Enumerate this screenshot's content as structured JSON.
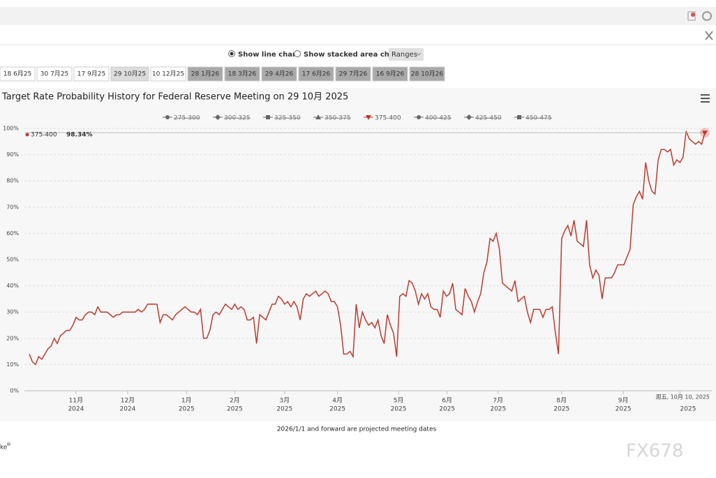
{
  "toolbar": {
    "line_option": "Show line chart",
    "area_option": "Show stacked area chart",
    "ranges": "Ranges"
  },
  "tabs": {
    "items": [
      "18 6月25",
      "30 7月25",
      "17 9月25",
      "29 10月25",
      "10 12月25",
      "28 1月26",
      "18 3月26",
      "29 4月26",
      "17 6月26",
      "29 7月26",
      "16 9月26",
      "28 10月26"
    ],
    "active_index": 3,
    "projected_from_index": 5
  },
  "chart_data": {
    "type": "line",
    "title": "Target Rate Probability History for Federal Reserve Meeting on 29 10月 2025",
    "hidden_series": [
      {
        "name": "275-300",
        "marker": "circle"
      },
      {
        "name": "300-325",
        "marker": "diamond"
      },
      {
        "name": "325-350",
        "marker": "square"
      },
      {
        "name": "350-375",
        "marker": "triangle"
      },
      {
        "name": "400-425",
        "marker": "circle"
      },
      {
        "name": "425-450",
        "marker": "diamond"
      },
      {
        "name": "450-475",
        "marker": "square"
      }
    ],
    "series": [
      {
        "name": "375-400",
        "color": "#c0392b",
        "marker": "triangle-down",
        "values": [
          14,
          11,
          10,
          13,
          12,
          14,
          16,
          17,
          20,
          18,
          21,
          22,
          23,
          23,
          25,
          28,
          27,
          27,
          29,
          30,
          30,
          29,
          32,
          30,
          30,
          30,
          29,
          28,
          29,
          29,
          30,
          30,
          30,
          30,
          30,
          31,
          30,
          31,
          33,
          33,
          33,
          33,
          26,
          29,
          29,
          28,
          27,
          29,
          30,
          31,
          32,
          31,
          30,
          30,
          29,
          31,
          20,
          20,
          23,
          29,
          30,
          29,
          31,
          33,
          32,
          31,
          33,
          31,
          32,
          31,
          27,
          27,
          28,
          18,
          29,
          28,
          27,
          30,
          33,
          33,
          36,
          35,
          33,
          34,
          32,
          34,
          32,
          27,
          35,
          37,
          36,
          37,
          38,
          36,
          37,
          38,
          37,
          34,
          34,
          32,
          25,
          14,
          14,
          15,
          13,
          33,
          24,
          30,
          27,
          25,
          26,
          24,
          27,
          21,
          18,
          29,
          25,
          22,
          13,
          36,
          37,
          36,
          42,
          41,
          38,
          33,
          37,
          35,
          37,
          32,
          31,
          31,
          28,
          38,
          36,
          37,
          41,
          31,
          30,
          29,
          39,
          36,
          34,
          30,
          34,
          37,
          45,
          49,
          58,
          57,
          60,
          54,
          41,
          40,
          39,
          38,
          42,
          34,
          35,
          36,
          30,
          26,
          31,
          31,
          31,
          28,
          31,
          31,
          32,
          22,
          14,
          58,
          61,
          63,
          59,
          65,
          57,
          56,
          55,
          65,
          48,
          43,
          46,
          44,
          35,
          43,
          43,
          43,
          45,
          48,
          48,
          48,
          51,
          54,
          71,
          74,
          76,
          73,
          87,
          80,
          76,
          75,
          88,
          92,
          92,
          91,
          92,
          86,
          88,
          87,
          89,
          99,
          96,
          95,
          94,
          95,
          94,
          98.34
        ]
      }
    ],
    "legend_order": [
      "275-300",
      "300-325",
      "325-350",
      "350-375",
      "375-400",
      "400-425",
      "425-450",
      "450-475"
    ],
    "tooltip": "98.34%",
    "xlim": [
      0,
      217
    ],
    "xticks": [
      {
        "value": 15,
        "label": "11月"
      },
      {
        "value": 31.6,
        "label": "12月"
      },
      {
        "value": 50.5,
        "label": "1月"
      },
      {
        "value": 66,
        "label": "2月"
      },
      {
        "value": 82,
        "label": "3月"
      },
      {
        "value": 99,
        "label": "4月"
      },
      {
        "value": 118.6,
        "label": "5月"
      },
      {
        "value": 134.2,
        "label": "6月"
      },
      {
        "value": 150.6,
        "label": "7月"
      },
      {
        "value": 171,
        "label": "8月"
      },
      {
        "value": 190.8,
        "label": "9月"
      },
      {
        "value": 209,
        "label": "周五, 10月 10, 2025"
      }
    ],
    "xtick_years": [
      "2024",
      "2024",
      "2025",
      "2025",
      "2025",
      "2025",
      "2025",
      "2025",
      "2025",
      "2025",
      "2025",
      "2025"
    ],
    "ylim": [
      0,
      100
    ],
    "yticks": [
      {
        "value": 0,
        "label": "0%"
      },
      {
        "value": 10,
        "label": "10%"
      },
      {
        "value": 20,
        "label": "20%"
      },
      {
        "value": 30,
        "label": "30%"
      },
      {
        "value": 40,
        "label": "40%"
      },
      {
        "value": 50,
        "label": "50%"
      },
      {
        "value": 60,
        "label": "60%"
      },
      {
        "value": 70,
        "label": "70%"
      },
      {
        "value": 80,
        "label": "80%"
      },
      {
        "value": 90,
        "label": "90%"
      },
      {
        "value": 100,
        "label": "100%"
      }
    ],
    "grid": true
  },
  "footer": {
    "note": "2026/1/1 and forward are projected meeting dates",
    "brand": "ke",
    "brand_mark": "®",
    "watermark": "FX678"
  }
}
